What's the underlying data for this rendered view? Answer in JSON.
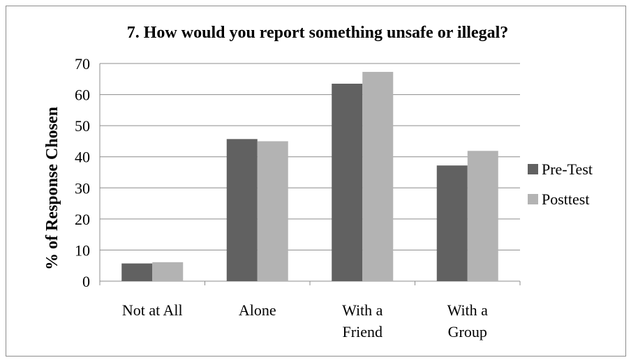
{
  "chart_data": {
    "type": "bar",
    "title": "7. How would you report something unsafe or illegal?",
    "xlabel": "",
    "ylabel": "% of Response Chosen",
    "ylim": [
      0,
      70
    ],
    "yticks": [
      "0",
      "10",
      "20",
      "30",
      "40",
      "50",
      "60",
      "70"
    ],
    "grid": true,
    "legend_position": "right",
    "categories": [
      [
        "Not at All"
      ],
      [
        "Alone"
      ],
      [
        "With a",
        "Friend"
      ],
      [
        "With a",
        "Group"
      ]
    ],
    "series": [
      {
        "name": "Pre-Test",
        "color": "#616161",
        "values": [
          5.7,
          45.7,
          63.5,
          37.2
        ]
      },
      {
        "name": "Posttest",
        "color": "#b3b3b3",
        "values": [
          6.1,
          45.0,
          67.3,
          41.9
        ]
      }
    ]
  }
}
